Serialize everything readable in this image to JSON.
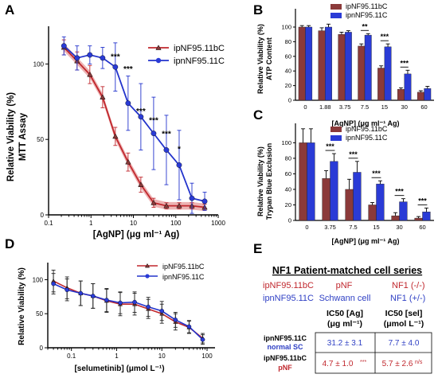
{
  "colors": {
    "red": "#c0272d",
    "red_fill": "#8b3a3a",
    "blue": "#2233cc",
    "blue_fill": "#2a3bd6",
    "ci_red": "#e8a0a0",
    "ci_blue": "#9fa6ea"
  },
  "chart_data": [
    {
      "panel": "A",
      "type": "line",
      "xscale": "log",
      "xlabel": "[AgNP] (μg ml⁻¹ Ag)",
      "ylabel_line1": "Relative Viability (%)",
      "ylabel_line2": "MTT Assay",
      "xlim": [
        0.1,
        1000
      ],
      "ylim": [
        0,
        125
      ],
      "xticks": [
        "0.1",
        "1",
        "10",
        "100",
        "1000"
      ],
      "yticks": [
        "0",
        "50",
        "100"
      ],
      "legend": "top-right",
      "x": [
        0.23,
        0.47,
        0.94,
        1.88,
        3.75,
        7.5,
        15,
        30,
        60,
        120,
        240,
        480
      ],
      "series": [
        {
          "name": "ipNF95.11bC",
          "marker": "triangle",
          "values": [
            111,
            102,
            93,
            78,
            52,
            35,
            20,
            8,
            6,
            6,
            6,
            5
          ],
          "errors": [
            5,
            6,
            6,
            7,
            6,
            6,
            5,
            3,
            2,
            2,
            2,
            2
          ]
        },
        {
          "name": "ipnNF95.11C",
          "marker": "circle",
          "values": [
            112,
            104,
            106,
            104,
            98,
            74,
            65,
            54,
            43,
            33,
            11,
            9
          ],
          "errors": [
            6,
            8,
            6,
            7,
            16,
            18,
            22,
            24,
            23,
            23,
            10,
            6
          ]
        }
      ],
      "annotations": [
        {
          "x": 3.75,
          "y": 103,
          "text": "***"
        },
        {
          "x": 7.5,
          "y": 95,
          "text": "***"
        },
        {
          "x": 15,
          "y": 67,
          "text": "***"
        },
        {
          "x": 30,
          "y": 61,
          "text": "***"
        },
        {
          "x": 60,
          "y": 52,
          "text": "***"
        },
        {
          "x": 120,
          "y": 42,
          "text": "*"
        }
      ]
    },
    {
      "panel": "B",
      "type": "bar",
      "xlabel": "[AgNP] (μg ml⁻¹ Ag)",
      "ylabel_line1": "Relative Viability (%)",
      "ylabel_line2": "ATP Content",
      "ylim": [
        0,
        125
      ],
      "yticks": [
        "0",
        "20",
        "40",
        "60",
        "80",
        "100"
      ],
      "categories": [
        "0",
        "1.88",
        "3.75",
        "7.5",
        "15",
        "30",
        "60"
      ],
      "legend": "top-right",
      "series": [
        {
          "name": "ipNF95.11bC",
          "values": [
            100,
            95,
            90,
            74,
            44,
            15,
            11
          ],
          "errors": [
            2,
            4,
            3,
            3,
            3,
            2,
            2
          ]
        },
        {
          "name": "ipnNF95.11C",
          "values": [
            100,
            100,
            93,
            89,
            73,
            36,
            16
          ],
          "errors": [
            2,
            4,
            2,
            2,
            4,
            5,
            3
          ]
        }
      ],
      "annotations": [
        {
          "category": "7.5",
          "text": "**"
        },
        {
          "category": "15",
          "text": "***"
        },
        {
          "category": "30",
          "text": "***"
        }
      ]
    },
    {
      "panel": "C",
      "type": "bar",
      "xlabel": "[AgNP] (μg ml⁻¹ Ag)",
      "ylabel_line1": "Relative Viability (%)",
      "ylabel_line2": "Trypan Blue  Exclusion",
      "ylim": [
        0,
        125
      ],
      "yticks": [
        "0",
        "20",
        "40",
        "60",
        "80",
        "100"
      ],
      "categories": [
        "0",
        "3.75",
        "7.5",
        "15",
        "30",
        "60"
      ],
      "legend": "top-right",
      "series": [
        {
          "name": "ipNF95.11bC",
          "values": [
            100,
            54,
            40,
            20,
            6,
            3
          ],
          "errors": [
            18,
            10,
            13,
            3,
            4,
            2
          ]
        },
        {
          "name": "ipnNF95.11C",
          "values": [
            100,
            76,
            62,
            47,
            24,
            11
          ],
          "errors": [
            18,
            10,
            14,
            4,
            4,
            5
          ]
        }
      ],
      "annotations": [
        {
          "category": "3.75",
          "text": "***"
        },
        {
          "category": "7.5",
          "text": "***"
        },
        {
          "category": "15",
          "text": "***"
        },
        {
          "category": "30",
          "text": "***"
        },
        {
          "category": "60",
          "text": "***"
        }
      ]
    },
    {
      "panel": "D",
      "type": "line",
      "xscale": "log",
      "xlabel": "[selumetinib] (μmol L⁻¹)",
      "ylabel": "Relative Viability (%)",
      "xlim": [
        0.03,
        150
      ],
      "ylim": [
        0,
        125
      ],
      "xticks": [
        "0.1",
        "1",
        "10",
        "100"
      ],
      "yticks": [
        "0",
        "50",
        "100"
      ],
      "legend": "top-right",
      "x": [
        0.04,
        0.08,
        0.16,
        0.3,
        0.6,
        1.2,
        2.5,
        5,
        10,
        20,
        40,
        80
      ],
      "series": [
        {
          "name": "ipNF95.11bC",
          "marker": "triangle",
          "values": [
            98,
            88,
            80,
            76,
            69,
            64,
            64,
            57,
            50,
            38,
            30,
            14
          ],
          "errors": [
            16,
            16,
            18,
            18,
            17,
            17,
            16,
            14,
            14,
            12,
            9,
            7
          ]
        },
        {
          "name": "ipnNF95.11C",
          "marker": "circle",
          "values": [
            94,
            85,
            80,
            76,
            70,
            66,
            67,
            60,
            54,
            41,
            31,
            12
          ],
          "errors": [
            15,
            16,
            18,
            18,
            17,
            16,
            15,
            14,
            14,
            11,
            9,
            7
          ]
        }
      ]
    }
  ],
  "panel_labels": {
    "a": "A",
    "b": "B",
    "c": "C",
    "d": "D",
    "e": "E"
  },
  "panel_e": {
    "title": "NF1 Patient-matched cell series",
    "row1": {
      "line": "ipNF95.11bC",
      "type": "pNF",
      "genotype": "NF1 (-/-)"
    },
    "row2": {
      "line": "ipnNF95.11C",
      "type": "Schwann cell",
      "genotype": "NF1 (+/-)"
    },
    "col1_head_a": "IC50 [Ag]",
    "col1_head_b": "(μg ml⁻¹)",
    "col2_head_a": "IC50 [sel]",
    "col2_head_b": "(μmol L⁻¹)",
    "t_row1_name": "ipnNF95.11C",
    "t_row1_sub": "normal SC",
    "t_row2_name": "ipNF95.11bC",
    "t_row2_sub": "pNF",
    "t_r1c1": "31.2 ± 3.1",
    "t_r1c2": "7.7 ± 4.0",
    "t_r2c1": "4.7 ± 1.0",
    "t_r2c1_sig": "***",
    "t_r2c2": "5.7 ± 2.6",
    "t_r2c2_sig": "n/s"
  }
}
